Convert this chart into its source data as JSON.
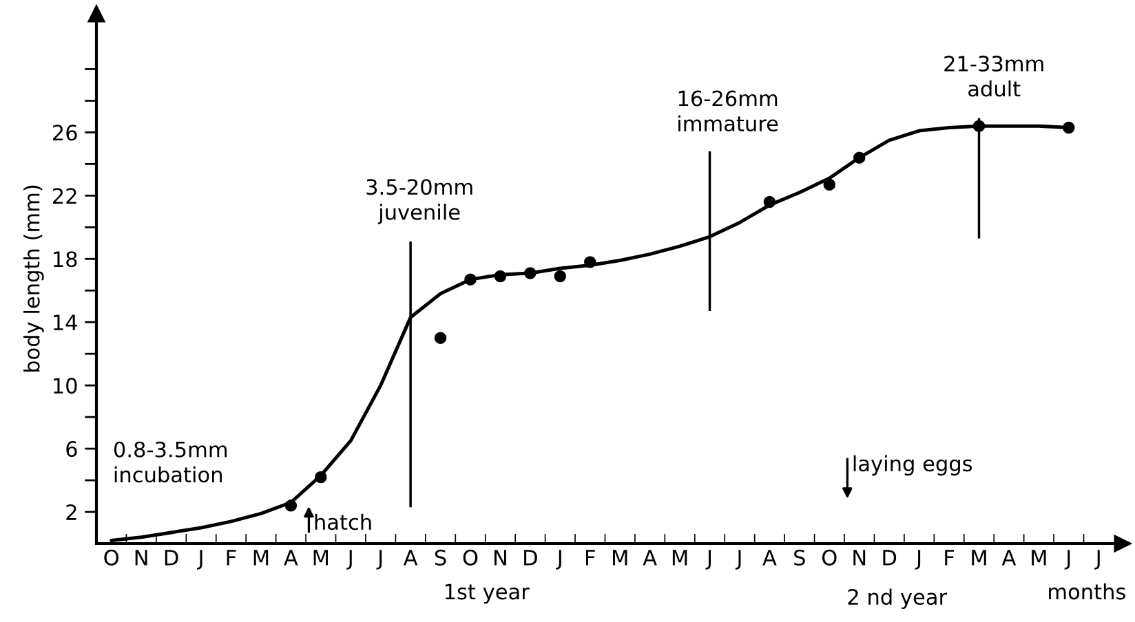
{
  "chart_data": {
    "type": "scatter",
    "ylabel": "body length (mm)",
    "categories": [
      "O",
      "N",
      "D",
      "J",
      "F",
      "M",
      "A",
      "M",
      "J",
      "J",
      "A",
      "S",
      "O",
      "N",
      "D",
      "J",
      "F",
      "M",
      "A",
      "M",
      "J",
      "J",
      "A",
      "S",
      "O",
      "N",
      "D",
      "J",
      "F",
      "M",
      "A",
      "M",
      "J",
      "J"
    ],
    "ylim": [
      0,
      33.5
    ],
    "yticks": [
      2,
      {
        "value": 4,
        "label": null
      },
      6,
      {
        "value": 8,
        "label": null
      },
      10,
      {
        "value": 12,
        "label": null
      },
      14,
      {
        "value": 16,
        "label": null
      },
      18,
      {
        "value": 20,
        "label": null
      },
      22,
      {
        "value": 24,
        "label": null
      },
      26,
      {
        "value": 28,
        "label": null
      },
      {
        "value": 30,
        "label": null
      }
    ],
    "grid": false,
    "series": [
      {
        "type": "line",
        "color": "#000000",
        "marker": "none",
        "line_style": "solid",
        "values": [
          0.2,
          0.4,
          0.7,
          1.0,
          1.4,
          1.9,
          2.6,
          4.3,
          6.5,
          10,
          14.3,
          15.8,
          16.7,
          17.0,
          17.1,
          17.4,
          17.6,
          17.9,
          18.3,
          18.8,
          19.4,
          20.3,
          21.4,
          22.2,
          23.1,
          24.4,
          25.5,
          26.1,
          26.3,
          26.4,
          26.4,
          26.4,
          26.3,
          null
        ]
      },
      {
        "color": "#000000",
        "marker": "circle",
        "values": [
          null,
          null,
          null,
          null,
          null,
          null,
          2.4,
          4.2,
          null,
          null,
          null,
          13,
          16.7,
          16.9,
          17.1,
          16.9,
          17.8,
          null,
          null,
          null,
          null,
          null,
          21.6,
          null,
          22.7,
          24.4,
          null,
          null,
          null,
          26.4,
          null,
          null,
          26.3,
          null
        ]
      },
      {
        "type": "bar",
        "color": "#000000",
        "values": [
          null,
          null,
          null,
          null,
          null,
          null,
          null,
          null,
          null,
          null,
          16.8,
          null,
          null,
          null,
          null,
          null,
          null,
          null,
          null,
          null,
          10.1,
          null,
          null,
          null,
          null,
          null,
          null,
          null,
          null,
          7.6,
          null,
          null,
          null,
          null
        ],
        "base": [
          null,
          null,
          null,
          null,
          null,
          null,
          null,
          null,
          null,
          null,
          2.3,
          null,
          null,
          null,
          null,
          null,
          null,
          null,
          null,
          null,
          14.7,
          null,
          null,
          null,
          null,
          null,
          null,
          null,
          null,
          19.3,
          null,
          null,
          null,
          null
        ]
      }
    ],
    "annotations": [
      "0.8-3.5mm\nincubation",
      "3.5-20mm\njuvenile",
      "16-26mm\nimmature",
      "21-33mm\nadult",
      "hatch",
      "laying eggs",
      "1st year",
      "2 nd year",
      "months"
    ]
  }
}
